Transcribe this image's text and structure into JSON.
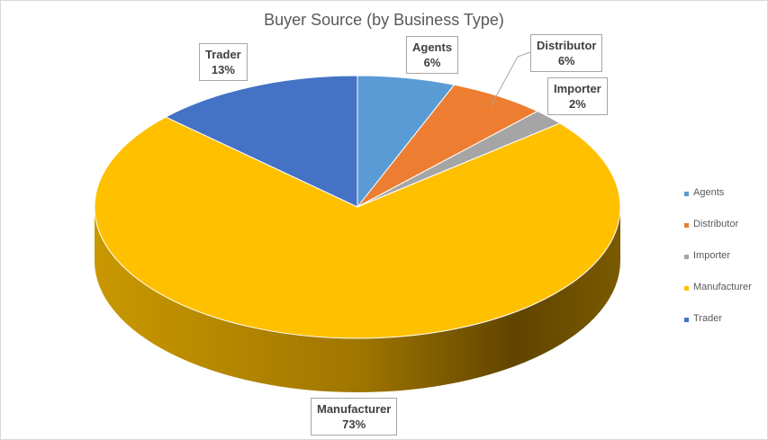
{
  "chart_data": {
    "type": "pie",
    "title": "Buyer Source (by Business Type)",
    "style": "3d",
    "categories": [
      "Agents",
      "Distributor",
      "Importer",
      "Manufacturer",
      "Trader"
    ],
    "values": [
      6,
      6,
      2,
      73,
      13
    ],
    "value_labels": [
      "6%",
      "6%",
      "2%",
      "73%",
      "13%"
    ],
    "colors": [
      "#5b9bd5",
      "#ed7d31",
      "#a5a5a5",
      "#ffc000",
      "#4472c4"
    ],
    "legend_position": "right"
  }
}
